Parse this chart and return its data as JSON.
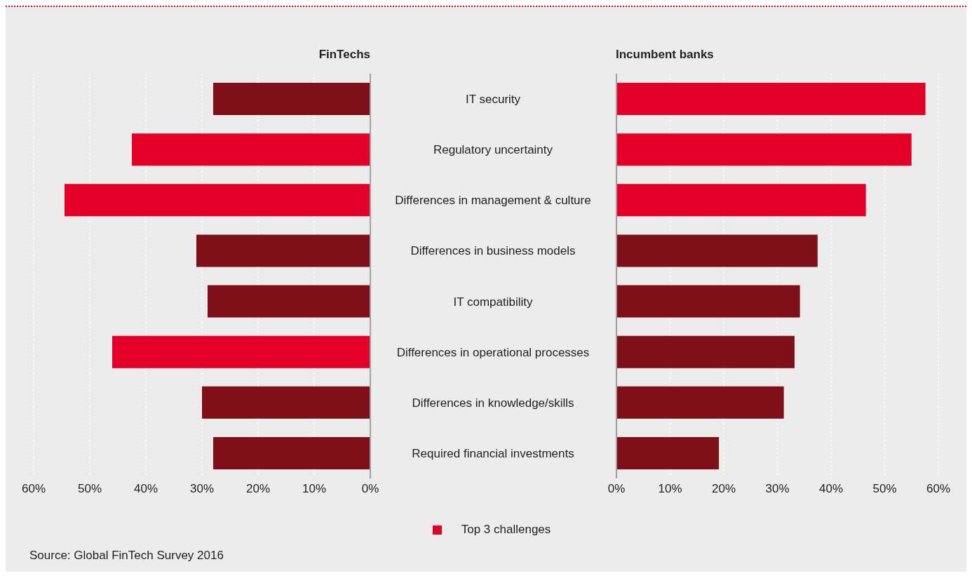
{
  "chart_data": [
    {
      "type": "bar",
      "title": "FinTechs",
      "orientation": "horizontal",
      "stacked": true,
      "categories": [
        "IT security",
        "Regulatory uncertainty",
        "Differences in management & culture",
        "Differences in business models",
        "IT compatibility",
        "Differences in operational processes",
        "Differences in knowledge/skills",
        "Required financial investments"
      ],
      "series": [
        {
          "name": "Top 3 challenges",
          "color": "#e30028",
          "values": [
            null,
            42.5,
            54.5,
            null,
            null,
            46,
            null,
            null
          ]
        },
        {
          "color": "#7f0f18",
          "values": [
            28,
            null,
            null,
            31,
            29,
            null,
            30,
            28
          ]
        }
      ],
      "xlim": [
        60,
        0
      ],
      "xticks": [
        {
          "value": 60,
          "label": "60%"
        },
        {
          "value": 50,
          "label": "50%"
        },
        {
          "value": 40,
          "label": "40%"
        },
        {
          "value": 30,
          "label": "30%"
        },
        {
          "value": 20,
          "label": "20%"
        },
        {
          "value": 10,
          "label": "10%"
        },
        {
          "value": 0,
          "label": "0%"
        }
      ],
      "grid": "x",
      "legend": "bottom",
      "annotations": [
        "Source: Global FinTech Survey 2016"
      ]
    },
    {
      "type": "bar",
      "title": "Incumbent banks",
      "orientation": "horizontal",
      "stacked": true,
      "tick_labels": "x",
      "series": [
        {
          "color": "#e30028",
          "values": [
            57.6,
            55,
            46.5,
            null,
            null,
            null,
            null,
            null
          ]
        },
        {
          "color": "#7f0f18",
          "values": [
            null,
            null,
            null,
            37.5,
            34.2,
            33.2,
            31.2,
            19.1
          ]
        }
      ],
      "xlim": [
        0,
        60
      ],
      "xticks": [
        {
          "value": 0,
          "label": "0%"
        },
        {
          "value": 10,
          "label": "10%"
        },
        {
          "value": 20,
          "label": "20%"
        },
        {
          "value": 30,
          "label": "30%"
        },
        {
          "value": 40,
          "label": "40%"
        },
        {
          "value": 50,
          "label": "50%"
        },
        {
          "value": 60,
          "label": "60%"
        }
      ],
      "grid": "x"
    }
  ]
}
